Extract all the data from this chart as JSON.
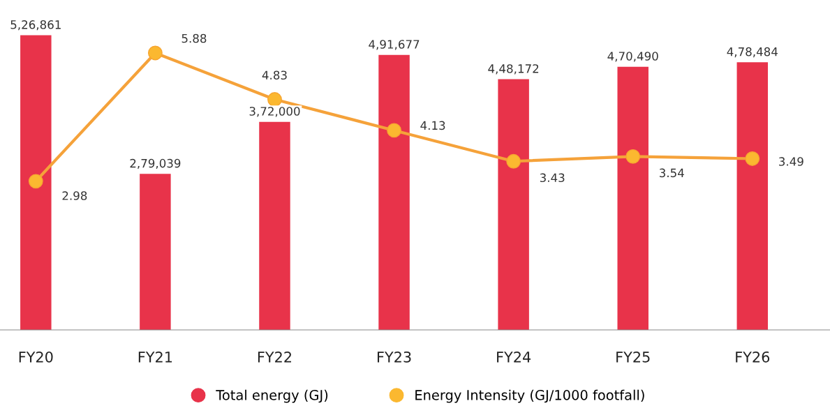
{
  "chart_data": {
    "type": "bar",
    "categories": [
      "FY20",
      "FY21",
      "FY22",
      "FY23",
      "FY24",
      "FY25",
      "FY26"
    ],
    "series": [
      {
        "name": "Total energy (GJ)",
        "color": "#e8334a",
        "values": [
          526861,
          279039,
          372000,
          491677,
          448172,
          470490,
          478484
        ],
        "value_labels": [
          "5,26,861",
          "2,79,039",
          "3,72,000",
          "4,91,677",
          "4,48,172",
          "4,70,490",
          "4,78,484"
        ]
      },
      {
        "name": "Energy Intensity (GJ/1000 footfall)",
        "type": "line",
        "axis": "y2",
        "color": "#f5a23a",
        "marker": "circle",
        "values": [
          2.98,
          5.88,
          4.83,
          4.13,
          3.43,
          3.54,
          3.49
        ],
        "value_labels": [
          "2.98",
          "5.88",
          "4.83",
          "4.13",
          "3.43",
          "3.54",
          "3.49"
        ]
      }
    ],
    "tick_labels": "x",
    "legend": "bottom",
    "grid": false
  }
}
